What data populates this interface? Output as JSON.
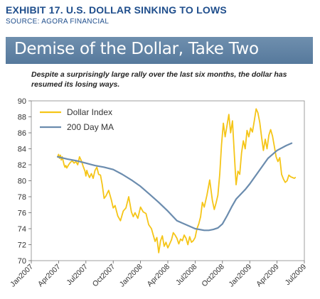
{
  "header": {
    "exhibit_title": "EXHIBIT 17. U.S. DOLLAR SINKING TO LOWS",
    "source": "SOURCE: AGORA FINANCIAL",
    "banner_title": "Demise of the Dollar, Take Two",
    "subtitle": "Despite a surprisingly large rally over the last six months, the dollar has resumed its losing ways."
  },
  "colors": {
    "dollar_index": "#f5c518",
    "ma200": "#6b8cae",
    "banner": "#6485a8",
    "title_text": "#1f4e8c"
  },
  "chart_data": {
    "type": "line",
    "ylim": [
      70,
      90
    ],
    "y_ticks": [
      70,
      72,
      74,
      76,
      78,
      80,
      82,
      84,
      86,
      88,
      90
    ],
    "x_ticks": [
      "Jan2007",
      "Apr2007",
      "Jul2007",
      "Oct2007",
      "Jan2008",
      "Apr2008",
      "Jul2008",
      "Oct2008",
      "Jan2009",
      "Apr2009",
      "Jul2009"
    ],
    "x_range": [
      0,
      30
    ],
    "x_unit": "months since Jan2007",
    "legend_position": "top-left",
    "grid": false,
    "series": [
      {
        "name": "Dollar Index",
        "color": "#f5c518",
        "x": [
          2.9,
          3.0,
          3.1,
          3.2,
          3.3,
          3.4,
          3.5,
          3.6,
          3.7,
          3.8,
          3.9,
          4.0,
          4.1,
          4.3,
          4.5,
          4.7,
          4.9,
          5.1,
          5.3,
          5.5,
          5.7,
          5.9,
          6.0,
          6.1,
          6.2,
          6.4,
          6.6,
          6.8,
          7.0,
          7.2,
          7.4,
          7.6,
          7.8,
          8.0,
          8.2,
          8.5,
          8.8,
          9.0,
          9.2,
          9.5,
          9.8,
          10.1,
          10.4,
          10.7,
          11.0,
          11.2,
          11.4,
          11.7,
          12.0,
          12.3,
          12.6,
          12.9,
          13.2,
          13.4,
          13.6,
          13.8,
          14.0,
          14.2,
          14.4,
          14.6,
          14.8,
          15.0,
          15.2,
          15.4,
          15.6,
          15.8,
          16.0,
          16.2,
          16.4,
          16.6,
          16.8,
          17.0,
          17.2,
          17.4,
          17.6,
          17.8,
          18.0,
          18.2,
          18.4,
          18.6,
          18.8,
          19.0,
          19.3,
          19.6,
          19.9,
          20.1,
          20.3,
          20.5,
          20.7,
          20.9,
          21.1,
          21.3,
          21.5,
          21.7,
          21.9,
          22.1,
          22.3,
          22.5,
          22.7,
          22.9,
          23.1,
          23.3,
          23.5,
          23.7,
          23.9,
          24.1,
          24.3,
          24.5,
          24.7,
          24.9,
          25.1,
          25.3,
          25.5,
          25.7,
          25.9,
          26.1,
          26.3,
          26.5,
          26.7,
          26.9,
          27.1,
          27.3,
          27.5,
          27.7,
          27.9,
          28.1,
          28.3,
          28.5,
          28.7,
          28.9,
          29.0
        ],
        "y": [
          83.0,
          83.3,
          82.8,
          83.2,
          82.6,
          83.0,
          82.5,
          82.0,
          81.7,
          81.9,
          81.6,
          81.8,
          82.0,
          82.3,
          82.5,
          82.2,
          82.4,
          82.0,
          83.0,
          82.5,
          81.8,
          81.2,
          80.6,
          81.3,
          80.9,
          80.4,
          80.9,
          80.3,
          81.3,
          81.7,
          80.8,
          80.7,
          79.5,
          77.8,
          78.1,
          78.8,
          77.6,
          76.6,
          76.9,
          75.6,
          75.0,
          76.2,
          76.6,
          78.0,
          76.1,
          75.5,
          76.0,
          75.3,
          76.7,
          76.1,
          75.9,
          74.5,
          74.0,
          73.2,
          72.4,
          72.9,
          71.0,
          72.5,
          73.1,
          71.8,
          72.3,
          71.6,
          72.1,
          72.6,
          73.5,
          73.2,
          72.8,
          72.1,
          72.7,
          72.5,
          73.2,
          72.8,
          72.0,
          73.0,
          72.3,
          72.5,
          72.9,
          74.0,
          74.6,
          75.5,
          77.3,
          76.7,
          78.2,
          80.1,
          77.5,
          76.4,
          77.2,
          78.2,
          80.8,
          84.5,
          87.2,
          85.5,
          86.9,
          88.3,
          86.0,
          87.5,
          83.5,
          79.5,
          81.2,
          80.8,
          83.5,
          85.0,
          84.0,
          86.3,
          85.5,
          86.6,
          86.1,
          87.5,
          89.0,
          88.5,
          87.3,
          85.5,
          83.8,
          85.2,
          84.0,
          85.7,
          86.4,
          85.6,
          84.3,
          83.0,
          82.4,
          82.9,
          80.8,
          80.2,
          79.8,
          80.0,
          80.7,
          80.5,
          80.4,
          80.3,
          80.4
        ],
        "y_note": "Dollar Index series shown ends near 80.5 at Jul2009"
      },
      {
        "name": "200 Day MA",
        "color": "#6b8cae",
        "x": [
          2.9,
          4.0,
          5.0,
          6.0,
          7.0,
          8.0,
          9.0,
          10.0,
          11.0,
          12.0,
          13.0,
          14.0,
          15.0,
          16.0,
          17.0,
          18.0,
          19.0,
          19.5,
          20.0,
          20.5,
          21.0,
          21.5,
          22.0,
          22.5,
          23.0,
          23.5,
          24.0,
          25.0,
          26.0,
          27.0,
          28.0,
          28.6
        ],
        "y": [
          83.0,
          82.7,
          82.5,
          82.2,
          81.9,
          81.7,
          81.4,
          80.8,
          80.1,
          79.3,
          78.3,
          77.3,
          76.2,
          75.0,
          74.5,
          74.0,
          73.8,
          73.8,
          73.9,
          74.1,
          74.6,
          75.6,
          76.7,
          77.7,
          78.3,
          78.9,
          79.6,
          81.2,
          82.8,
          83.8,
          84.4,
          84.7
        ]
      }
    ]
  }
}
